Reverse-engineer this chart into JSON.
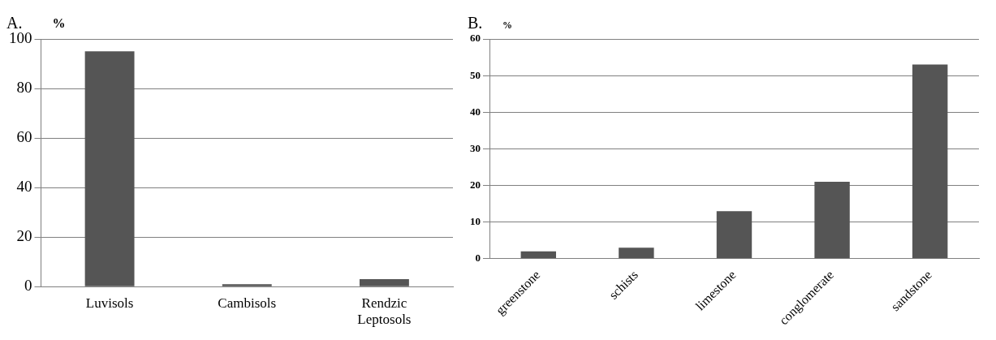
{
  "chart_data": [
    {
      "type": "bar",
      "title": "A.",
      "ylabel": "%",
      "categories": [
        "Luvisols",
        "Cambisols",
        "Rendzic Leptosols"
      ],
      "values": [
        95,
        1,
        3
      ],
      "color": "#555555",
      "ylim": [
        0,
        100
      ],
      "yticks": [
        0,
        20,
        40,
        60,
        80,
        100
      ],
      "grid": "y"
    },
    {
      "type": "bar",
      "title": "B.",
      "ylabel": "%",
      "categories": [
        "greenstone",
        "schists",
        "limestone",
        "conglomerate",
        "sandstone"
      ],
      "values": [
        2,
        3,
        13,
        21,
        53
      ],
      "color": "#555555",
      "ylim": [
        0,
        60
      ],
      "yticks": [
        0,
        10,
        20,
        30,
        40,
        50,
        60
      ],
      "grid": "y"
    }
  ]
}
